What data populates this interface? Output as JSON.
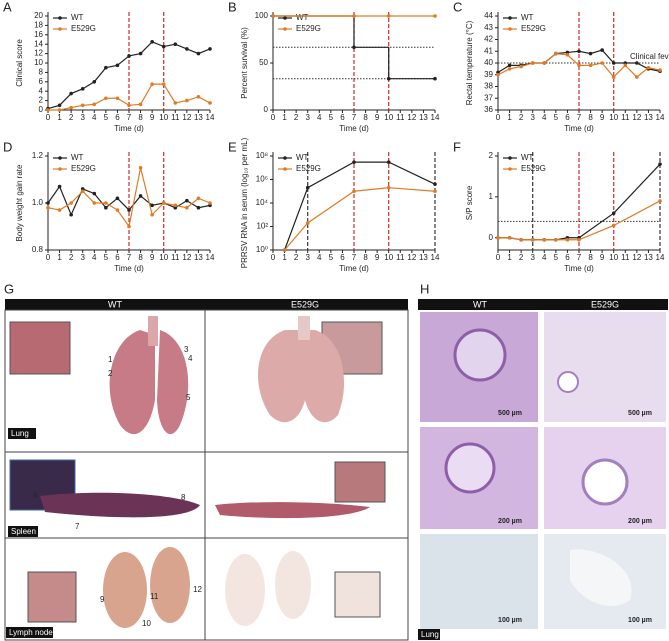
{
  "chart_data": [
    {
      "type": "line",
      "panel": "A",
      "ylabel": "Clinical score",
      "xlabel": "Time (d)",
      "x": [
        0,
        1,
        2,
        3,
        4,
        5,
        6,
        7,
        8,
        9,
        10,
        11,
        12,
        13,
        14
      ],
      "xlim": [
        0,
        14
      ],
      "xticks": [
        0,
        1,
        2,
        3,
        4,
        5,
        6,
        7,
        8,
        9,
        10,
        11,
        12,
        13,
        14
      ],
      "ylim": [
        0,
        20
      ],
      "yticks": [
        0,
        2,
        4,
        6,
        8,
        10,
        12,
        14,
        16,
        18,
        20
      ],
      "vlines": [
        {
          "x": 7,
          "color": "#d62728"
        },
        {
          "x": 10,
          "color": "#d62728"
        }
      ],
      "series": [
        {
          "name": "WT",
          "color": "#222222",
          "values": [
            0.3,
            1,
            3.5,
            4.5,
            6,
            9,
            9.5,
            11.5,
            12,
            14.5,
            13.5,
            14,
            13,
            12,
            13
          ]
        },
        {
          "name": "E529G",
          "color": "#e07b24",
          "values": [
            0,
            0,
            0.5,
            1,
            1.2,
            2.5,
            2.5,
            1,
            1.2,
            5.5,
            5.5,
            1.5,
            2,
            2.8,
            1.5
          ]
        }
      ]
    },
    {
      "type": "step",
      "panel": "B",
      "ylabel": "Percent survival (%)",
      "xlabel": "Time (d)",
      "x": [
        0,
        7,
        10,
        14
      ],
      "xlim": [
        0,
        14
      ],
      "xticks": [
        0,
        1,
        2,
        3,
        4,
        5,
        6,
        7,
        8,
        9,
        10,
        11,
        12,
        13,
        14
      ],
      "ylim": [
        0,
        100
      ],
      "yticks": [
        0,
        50,
        100
      ],
      "vlines": [
        {
          "x": 7,
          "color": "#d62728"
        },
        {
          "x": 10,
          "color": "#d62728"
        }
      ],
      "hlines": [
        {
          "y": 66.7
        },
        {
          "y": 33.3
        }
      ],
      "series": [
        {
          "name": "WT",
          "color": "#222222",
          "values": [
            100,
            66.7,
            33.3,
            33.3
          ]
        },
        {
          "name": "E529G",
          "color": "#e07b24",
          "values": [
            100,
            100,
            100,
            100
          ]
        }
      ]
    },
    {
      "type": "line",
      "panel": "C",
      "ylabel": "Rectal temperature (°C)",
      "xlabel": "Time (d)",
      "x": [
        0,
        1,
        2,
        3,
        4,
        5,
        6,
        7,
        8,
        9,
        10,
        11,
        12,
        13,
        14
      ],
      "xlim": [
        0,
        14
      ],
      "xticks": [
        0,
        1,
        2,
        3,
        4,
        5,
        6,
        7,
        8,
        9,
        10,
        11,
        12,
        13,
        14
      ],
      "ylim": [
        36,
        44
      ],
      "yticks": [
        36,
        37,
        38,
        39,
        40,
        41,
        42,
        43,
        44
      ],
      "vlines": [
        {
          "x": 7,
          "color": "#d62728"
        },
        {
          "x": 10,
          "color": "#d62728"
        }
      ],
      "hlines": [
        {
          "y": 40,
          "label": "Clinical fever"
        }
      ],
      "series": [
        {
          "name": "WT",
          "color": "#222222",
          "values": [
            39.2,
            39.8,
            39.8,
            40,
            40,
            40.8,
            40.9,
            41,
            40.8,
            41.1,
            40,
            40,
            40,
            39.5,
            39.3
          ]
        },
        {
          "name": "E529G",
          "color": "#e07b24",
          "values": [
            39,
            39.5,
            39.7,
            40,
            40,
            40.8,
            40.7,
            39.8,
            39.8,
            40,
            38.8,
            39.8,
            38.8,
            39.6,
            39.4
          ]
        }
      ]
    },
    {
      "type": "line",
      "panel": "D",
      "ylabel": "Body weight gain rate",
      "xlabel": "Time (d)",
      "x": [
        0,
        1,
        2,
        3,
        4,
        5,
        6,
        7,
        8,
        9,
        10,
        11,
        12,
        13,
        14
      ],
      "xlim": [
        0,
        14
      ],
      "xticks": [
        0,
        1,
        2,
        3,
        4,
        5,
        6,
        7,
        8,
        9,
        10,
        11,
        12,
        13,
        14
      ],
      "ylim": [
        0.8,
        1.2
      ],
      "yticks": [
        0.8,
        {
          "value": 1,
          "label": "1.0"
        },
        1.2
      ],
      "vlines": [
        {
          "x": 7,
          "color": "#d62728"
        },
        {
          "x": 10,
          "color": "#d62728"
        }
      ],
      "series": [
        {
          "name": "WT",
          "color": "#222222",
          "values": [
            1.0,
            1.07,
            0.95,
            1.06,
            1.04,
            0.98,
            1.02,
            0.97,
            1.03,
            0.99,
            1.0,
            0.98,
            1.01,
            0.98,
            0.99
          ]
        },
        {
          "name": "E529G",
          "color": "#e07b24",
          "values": [
            0.98,
            0.97,
            1.0,
            1.05,
            1.0,
            1.0,
            0.97,
            0.9,
            1.15,
            0.95,
            1.0,
            0.99,
            0.98,
            1.02,
            1.0
          ]
        }
      ]
    },
    {
      "type": "line",
      "panel": "E",
      "ylabel": "PRRSV RNA in serum (log₁₀ per mL)",
      "xlabel": "Time (d)",
      "yscale": "log",
      "x": [
        1,
        3,
        7,
        10,
        14
      ],
      "xlim": [
        0,
        14
      ],
      "xticks": [
        0,
        1,
        2,
        3,
        4,
        5,
        6,
        7,
        8,
        9,
        10,
        11,
        12,
        13,
        14
      ],
      "ylim": [
        1,
        100000000
      ],
      "yticks": [
        {
          "value": 1,
          "label": "10⁰"
        },
        {
          "value": 100,
          "label": "10²"
        },
        {
          "value": 10000,
          "label": "10⁴"
        },
        {
          "value": 1000000,
          "label": "10⁶"
        },
        {
          "value": 100000000,
          "label": "10⁸"
        }
      ],
      "vlines": [
        {
          "x": 3,
          "color": "#333333"
        },
        {
          "x": 7,
          "color": "#d62728"
        },
        {
          "x": 10,
          "color": "#d62728"
        },
        {
          "x": 14,
          "color": "#333333"
        }
      ],
      "series": [
        {
          "name": "WT",
          "color": "#222222",
          "values": [
            1,
            200000,
            30000000,
            30000000,
            400000
          ]
        },
        {
          "name": "E529G",
          "color": "#e07b24",
          "values": [
            1,
            200,
            100000,
            200000,
            100000
          ]
        }
      ]
    },
    {
      "type": "line",
      "panel": "F",
      "ylabel": "S/P score",
      "xlabel": "Time (d)",
      "x": [
        0,
        1,
        2,
        3,
        4,
        5,
        6,
        7,
        10,
        14
      ],
      "xlim": [
        0,
        14
      ],
      "xticks": [
        0,
        1,
        2,
        3,
        4,
        5,
        6,
        7,
        8,
        9,
        10,
        11,
        12,
        13,
        14
      ],
      "ylim": [
        -0.3,
        2
      ],
      "yticks": [
        0,
        1,
        2
      ],
      "vlines": [
        {
          "x": 3,
          "color": "#333333"
        },
        {
          "x": 7,
          "color": "#d62728"
        },
        {
          "x": 10,
          "color": "#d62728"
        },
        {
          "x": 14,
          "color": "#333333"
        }
      ],
      "hlines": [
        {
          "y": 0.4
        }
      ],
      "series": [
        {
          "name": "WT",
          "color": "#222222",
          "values": [
            0,
            0,
            -0.05,
            -0.05,
            -0.05,
            -0.05,
            0,
            0,
            0.6,
            1.8
          ]
        },
        {
          "name": "E529G",
          "color": "#e07b24",
          "values": [
            0,
            0,
            -0.05,
            -0.05,
            -0.05,
            -0.05,
            -0.05,
            -0.05,
            0.3,
            0.9
          ]
        }
      ]
    }
  ],
  "panel_g": {
    "label": "G",
    "columns": [
      "WT",
      "E529G"
    ],
    "rows": [
      "Lung",
      "Spleen",
      "Lymph node"
    ],
    "callouts": [
      "1",
      "2",
      "3",
      "4",
      "5",
      "6",
      "7",
      "8",
      "9",
      "10",
      "11",
      "12"
    ]
  },
  "panel_h": {
    "label": "H",
    "columns": [
      "WT",
      "E529G"
    ],
    "scale_bars": [
      "500 µm",
      "500 µm",
      "200 µm",
      "200 µm",
      "100 µm",
      "100 µm"
    ],
    "row_label": "Lung"
  }
}
